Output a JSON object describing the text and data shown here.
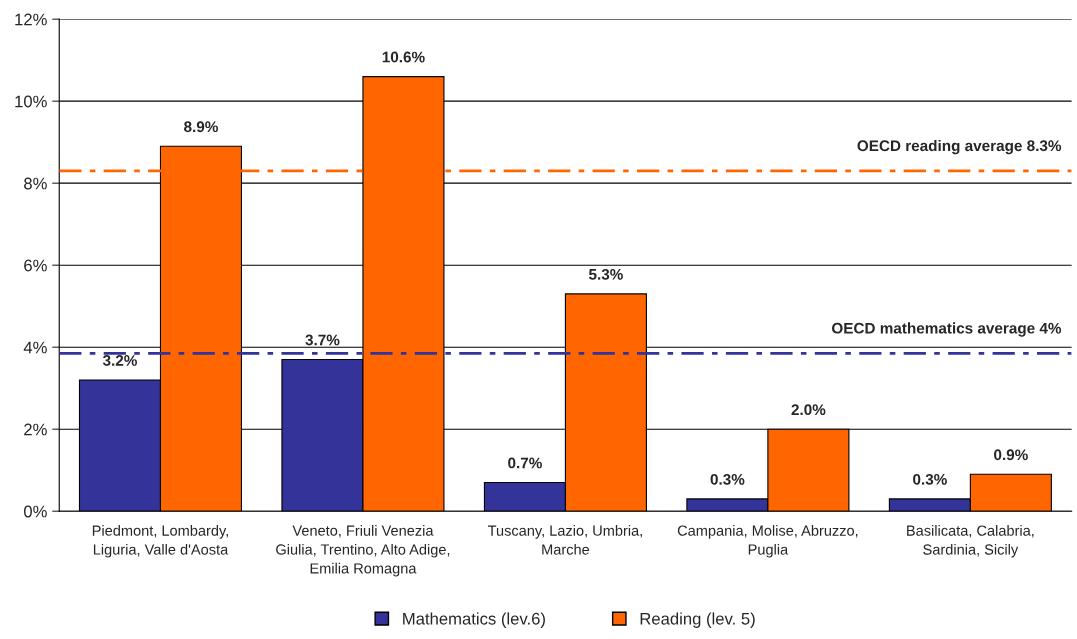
{
  "chart_data": {
    "type": "bar",
    "categories": [
      "Piedmont, Lombardy,\nLiguria, Valle d'Aosta",
      "Veneto, Friuli Venezia\nGiulia, Trentino, Alto Adige,\nEmilia Romagna",
      "Tuscany, Lazio, Umbria,\nMarche",
      "Campania, Molise, Abruzzo,\nPuglia",
      "Basilicata, Calabria,\nSardinia, Sicily"
    ],
    "series": [
      {
        "name": "Mathematics (lev.6)",
        "color": "#333399",
        "values": [
          3.2,
          3.7,
          0.7,
          0.3,
          0.3
        ],
        "value_labels": [
          "3.2%",
          "3.7%",
          "0.7%",
          "0.3%",
          "0.3%"
        ]
      },
      {
        "name": "Reading (lev. 5)",
        "color": "#ff6600",
        "values": [
          8.9,
          10.6,
          5.3,
          2.0,
          0.9
        ],
        "value_labels": [
          "8.9%",
          "10.6%",
          "5.3%",
          "2.0%",
          "0.9%"
        ]
      }
    ],
    "ylim": [
      0,
      12
    ],
    "yticks": [
      {
        "value": 0,
        "label": "0%"
      },
      {
        "value": 2,
        "label": "2%"
      },
      {
        "value": 4,
        "label": "4%"
      },
      {
        "value": 6,
        "label": "6%"
      },
      {
        "value": 8,
        "label": "8%"
      },
      {
        "value": 10,
        "label": "10%"
      },
      {
        "value": 12,
        "label": "12%"
      }
    ],
    "ref_lines": [
      {
        "axis": "y",
        "value": 8.3,
        "label": "OECD reading average 8.3%",
        "color": "#ff6600",
        "line_style": "dashed"
      },
      {
        "axis": "y",
        "value": 3.85,
        "label": "OECD mathematics average 4%",
        "color": "#333399",
        "line_style": "dashed"
      }
    ],
    "grid": "y",
    "legend": "bottom"
  }
}
